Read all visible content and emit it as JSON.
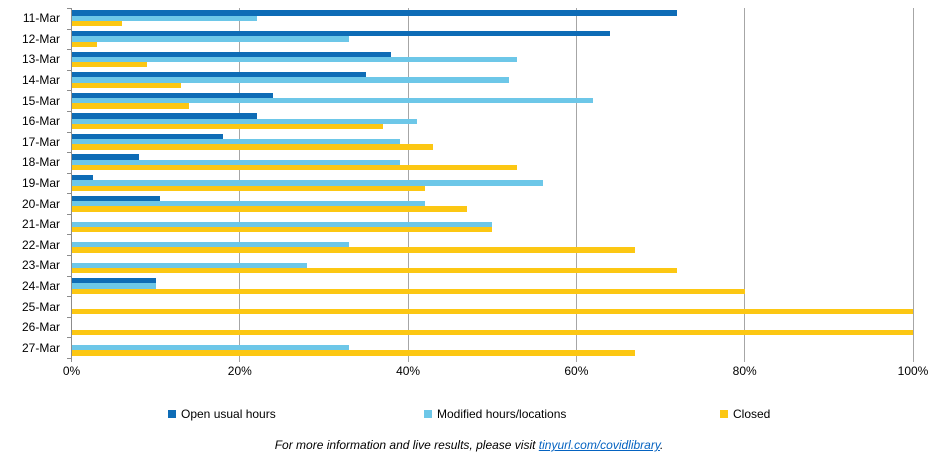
{
  "chart_data": {
    "type": "bar",
    "orientation": "horizontal",
    "title": "",
    "xlabel": "",
    "ylabel": "",
    "xlim": [
      0,
      100
    ],
    "x_tick_labels": [
      "0%",
      "20%",
      "40%",
      "60%",
      "80%",
      "100%"
    ],
    "x_tick_values": [
      0,
      20,
      40,
      60,
      80,
      100
    ],
    "grid": "vertical",
    "legend_position": "bottom",
    "categories": [
      "11-Mar",
      "12-Mar",
      "13-Mar",
      "14-Mar",
      "15-Mar",
      "16-Mar",
      "17-Mar",
      "18-Mar",
      "19-Mar",
      "20-Mar",
      "21-Mar",
      "22-Mar",
      "23-Mar",
      "24-Mar",
      "25-Mar",
      "26-Mar",
      "27-Mar"
    ],
    "series": [
      {
        "name": "Open usual hours",
        "color": "#0e6cb6",
        "values": [
          72,
          64,
          38,
          35,
          24,
          22,
          18,
          8,
          2.5,
          10.5,
          0,
          0,
          0,
          10,
          0,
          0,
          0
        ]
      },
      {
        "name": "Modified hours/locations",
        "color": "#6dc7e8",
        "values": [
          22,
          33,
          53,
          52,
          62,
          41,
          39,
          39,
          56,
          42,
          50,
          33,
          28,
          10,
          0,
          0,
          33
        ]
      },
      {
        "name": "Closed",
        "color": "#fcc713",
        "values": [
          6,
          3,
          9,
          13,
          14,
          37,
          43,
          53,
          42,
          47,
          50,
          67,
          72,
          80,
          100,
          100,
          67
        ]
      }
    ]
  },
  "legend": {
    "items": [
      "Open usual hours",
      "Modified hours/locations",
      "Closed"
    ]
  },
  "footer": {
    "text_before_link": "For more information and live results, please visit ",
    "link_text": "tinyurl.com/covidlibrary",
    "text_after_link": "."
  },
  "colors": {
    "gridline": "#a6a6a6",
    "axis": "#8c8c8c",
    "text": "#000000",
    "link": "#0563c1"
  }
}
